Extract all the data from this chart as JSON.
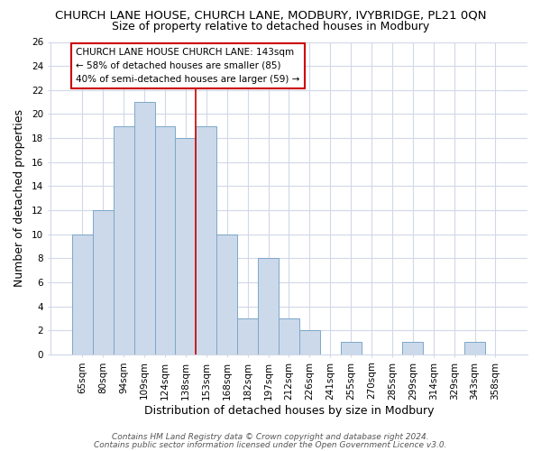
{
  "title": "CHURCH LANE HOUSE, CHURCH LANE, MODBURY, IVYBRIDGE, PL21 0QN",
  "subtitle": "Size of property relative to detached houses in Modbury",
  "xlabel": "Distribution of detached houses by size in Modbury",
  "ylabel": "Number of detached properties",
  "categories": [
    "65sqm",
    "80sqm",
    "94sqm",
    "109sqm",
    "124sqm",
    "138sqm",
    "153sqm",
    "168sqm",
    "182sqm",
    "197sqm",
    "212sqm",
    "226sqm",
    "241sqm",
    "255sqm",
    "270sqm",
    "285sqm",
    "299sqm",
    "314sqm",
    "329sqm",
    "343sqm",
    "358sqm"
  ],
  "values": [
    10,
    12,
    19,
    21,
    19,
    18,
    19,
    10,
    3,
    8,
    3,
    2,
    0,
    1,
    0,
    0,
    1,
    0,
    0,
    1,
    0
  ],
  "bar_color": "#ccd9ea",
  "bar_edge_color": "#7ba7c9",
  "vline_x": 5.5,
  "vline_color": "#cc0000",
  "ylim": [
    0,
    26
  ],
  "yticks": [
    0,
    2,
    4,
    6,
    8,
    10,
    12,
    14,
    16,
    18,
    20,
    22,
    24,
    26
  ],
  "annotation_title": "CHURCH LANE HOUSE CHURCH LANE: 143sqm",
  "annotation_line1": "← 58% of detached houses are smaller (85)",
  "annotation_line2": "40% of semi-detached houses are larger (59) →",
  "annotation_box_color": "#ffffff",
  "annotation_box_edge": "#cc0000",
  "footer1": "Contains HM Land Registry data © Crown copyright and database right 2024.",
  "footer2": "Contains public sector information licensed under the Open Government Licence v3.0.",
  "bg_color": "#ffffff",
  "plot_bg_color": "#ffffff",
  "grid_color": "#d0d8e8",
  "title_fontsize": 9.5,
  "subtitle_fontsize": 9,
  "axis_label_fontsize": 9,
  "tick_fontsize": 7.5,
  "footer_fontsize": 6.5
}
